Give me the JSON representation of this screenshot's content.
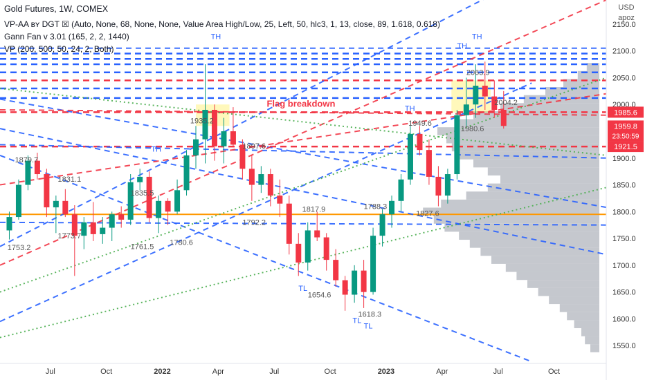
{
  "header": {
    "title": "Gold Futures, 1W, COMEX",
    "indicators": [
      "VP-AA ʙʏ DGT ☒ (Auto, None, 68, None, None, Value Area High/Low, 25, Left, 50, hlc3, 1, 13, close, 89, 1.618, 0.618)",
      "Gann Fan v 3.01 (165, 2, 2, 1440)",
      "VP (200, 500, 50, 24, 2, Both)"
    ]
  },
  "currency": {
    "code": "USD",
    "note": "apoz"
  },
  "colors": {
    "up": "#089981",
    "down": "#f23645",
    "blue": "#2962ff",
    "vp_green": "#4caf50",
    "orange": "#ff9800",
    "grey": "#b2b5be"
  },
  "chart_data": {
    "type": "candlestick",
    "timeframe": "1W",
    "x_ticks": [
      {
        "t": 0.2,
        "label": "Jul"
      },
      {
        "t": 3.2,
        "label": "Oct"
      },
      {
        "t": 6.2,
        "label": "2022"
      },
      {
        "t": 9.2,
        "label": "Apr"
      },
      {
        "t": 12.2,
        "label": "Jul"
      },
      {
        "t": 15.2,
        "label": "Oct"
      },
      {
        "t": 18.2,
        "label": "2023"
      },
      {
        "t": 21.2,
        "label": "Apr"
      },
      {
        "t": 24.2,
        "label": "Jul"
      },
      {
        "t": 27.2,
        "label": "Oct"
      }
    ],
    "y_ticks": [
      1550,
      1600,
      1650,
      1700,
      1750,
      1800,
      1850,
      1900,
      1950,
      2000,
      2050,
      2100,
      2150
    ],
    "ylim": [
      1518,
      2195
    ],
    "xlim": [
      -2.5,
      30.0
    ],
    "price_tags": [
      {
        "value": 1985.6,
        "label": "1985.6",
        "color": "#f23645"
      },
      {
        "value": 1959.8,
        "label": "1959.8",
        "sub": "23:50:59",
        "color": "#f23645"
      },
      {
        "value": 1921.5,
        "label": "1921.5",
        "color": "#f23645"
      }
    ],
    "annotations": [
      {
        "text": "TH",
        "t": 8.8,
        "p": 2122,
        "color": "#2962ff"
      },
      {
        "text": "TH",
        "t": 5.6,
        "p": 1912,
        "color": "#2962ff"
      },
      {
        "text": "TH",
        "t": 19.2,
        "p": 1988,
        "color": "#2962ff"
      },
      {
        "text": "TH",
        "t": 22.0,
        "p": 2105,
        "color": "#2962ff"
      },
      {
        "text": "TH",
        "t": 22.8,
        "p": 2122,
        "color": "#2962ff"
      },
      {
        "text": "TL",
        "t": 13.5,
        "p": 1652,
        "color": "#2962ff"
      },
      {
        "text": "TL",
        "t": 16.4,
        "p": 1592,
        "color": "#2962ff"
      },
      {
        "text": "TL",
        "t": 17.0,
        "p": 1582,
        "color": "#2962ff"
      },
      {
        "text": "Flag breakdown",
        "t": 11.8,
        "p": 1996,
        "color": "#f23645"
      }
    ],
    "level_labels": [
      {
        "t": -1.7,
        "p": 1892,
        "text": "1879.7"
      },
      {
        "t": 0.6,
        "p": 1856,
        "text": "1831.1"
      },
      {
        "t": 0.6,
        "p": 1750,
        "text": "1773.7"
      },
      {
        "t": -2.1,
        "p": 1728,
        "text": "1753.2"
      },
      {
        "t": 4.5,
        "p": 1830,
        "text": "1835.5"
      },
      {
        "t": 4.5,
        "p": 1730,
        "text": "1761.5"
      },
      {
        "t": 6.6,
        "p": 1738,
        "text": "1780.6"
      },
      {
        "t": 7.7,
        "p": 1965,
        "text": "1935.2"
      },
      {
        "t": 10.5,
        "p": 1918,
        "text": "1897.6"
      },
      {
        "t": 10.5,
        "p": 1775,
        "text": "1792.2"
      },
      {
        "t": 14.0,
        "p": 1640,
        "text": "1654.6"
      },
      {
        "t": 16.7,
        "p": 1604,
        "text": "1618.3"
      },
      {
        "t": 17.0,
        "p": 1805,
        "text": "1788.3"
      },
      {
        "t": 19.4,
        "p": 1960,
        "text": "1949.6"
      },
      {
        "t": 22.2,
        "p": 1950,
        "text": "1980.6"
      },
      {
        "t": 22.5,
        "p": 2055,
        "text": "2063.9"
      },
      {
        "t": 24.0,
        "p": 1999,
        "text": "2004.2"
      },
      {
        "t": 19.8,
        "p": 1792,
        "text": "1827.6"
      },
      {
        "t": 13.7,
        "p": 1800,
        "text": "1817.9"
      }
    ],
    "candles": [
      [
        -2.0,
        1765,
        1800,
        1748,
        1790
      ],
      [
        -1.5,
        1790,
        1860,
        1785,
        1850
      ],
      [
        -1.0,
        1850,
        1905,
        1840,
        1895
      ],
      [
        -0.5,
        1895,
        1910,
        1860,
        1870
      ],
      [
        0.0,
        1870,
        1880,
        1790,
        1808
      ],
      [
        0.5,
        1808,
        1830,
        1760,
        1820
      ],
      [
        1.0,
        1820,
        1842,
        1790,
        1795
      ],
      [
        1.5,
        1795,
        1812,
        1680,
        1755
      ],
      [
        2.0,
        1755,
        1790,
        1730,
        1780
      ],
      [
        2.5,
        1780,
        1818,
        1745,
        1758
      ],
      [
        3.0,
        1758,
        1790,
        1740,
        1770
      ],
      [
        3.5,
        1770,
        1800,
        1745,
        1795
      ],
      [
        4.0,
        1795,
        1810,
        1770,
        1785
      ],
      [
        4.5,
        1785,
        1870,
        1775,
        1855
      ],
      [
        5.0,
        1855,
        1880,
        1840,
        1865
      ],
      [
        5.5,
        1865,
        1875,
        1780,
        1788
      ],
      [
        6.0,
        1788,
        1830,
        1760,
        1820
      ],
      [
        6.5,
        1820,
        1825,
        1775,
        1800
      ],
      [
        7.0,
        1800,
        1860,
        1795,
        1840
      ],
      [
        7.5,
        1840,
        1915,
        1830,
        1905
      ],
      [
        8.0,
        1905,
        1960,
        1880,
        1935
      ],
      [
        8.5,
        1935,
        2075,
        1890,
        1990
      ],
      [
        9.0,
        1990,
        2000,
        1895,
        1922
      ],
      [
        9.5,
        1922,
        1975,
        1890,
        1950
      ],
      [
        10.0,
        1950,
        1995,
        1920,
        1925
      ],
      [
        10.5,
        1925,
        1935,
        1860,
        1880
      ],
      [
        11.0,
        1880,
        1905,
        1820,
        1850
      ],
      [
        11.5,
        1850,
        1885,
        1835,
        1870
      ],
      [
        12.0,
        1870,
        1880,
        1810,
        1830
      ],
      [
        12.5,
        1830,
        1860,
        1790,
        1815
      ],
      [
        13.0,
        1815,
        1830,
        1720,
        1740
      ],
      [
        13.5,
        1740,
        1760,
        1680,
        1705
      ],
      [
        14.0,
        1705,
        1780,
        1690,
        1765
      ],
      [
        14.5,
        1765,
        1800,
        1745,
        1752
      ],
      [
        15.0,
        1752,
        1760,
        1690,
        1710
      ],
      [
        15.5,
        1710,
        1730,
        1660,
        1672
      ],
      [
        16.0,
        1672,
        1680,
        1615,
        1645
      ],
      [
        16.5,
        1645,
        1700,
        1630,
        1690
      ],
      [
        17.0,
        1690,
        1710,
        1620,
        1650
      ],
      [
        17.5,
        1650,
        1770,
        1645,
        1755
      ],
      [
        18.0,
        1755,
        1805,
        1735,
        1795
      ],
      [
        18.5,
        1795,
        1830,
        1770,
        1820
      ],
      [
        19.0,
        1820,
        1870,
        1800,
        1860
      ],
      [
        19.5,
        1860,
        1960,
        1850,
        1945
      ],
      [
        20.0,
        1945,
        1960,
        1905,
        1915
      ],
      [
        20.5,
        1915,
        1935,
        1850,
        1865
      ],
      [
        21.0,
        1865,
        1885,
        1810,
        1830
      ],
      [
        21.5,
        1830,
        1880,
        1815,
        1870
      ],
      [
        22.0,
        1870,
        1990,
        1860,
        1980
      ],
      [
        22.5,
        1980,
        2050,
        1960,
        2000
      ],
      [
        23.0,
        2000,
        2075,
        1975,
        2035
      ],
      [
        23.5,
        2035,
        2080,
        1990,
        2015
      ],
      [
        24.0,
        2015,
        2045,
        1975,
        1990
      ],
      [
        24.5,
        1990,
        2025,
        1955,
        1960
      ]
    ],
    "blue_lines": [
      [
        [
          -2.5,
          1735
        ],
        [
          27,
          2260
        ]
      ],
      [
        [
          -2.5,
          1955
        ],
        [
          30,
          1720
        ]
      ],
      [
        [
          -2.5,
          2010
        ],
        [
          30,
          1808
        ]
      ],
      [
        [
          -2.5,
          1905
        ],
        [
          26,
          1520
        ]
      ],
      [
        [
          -2.5,
          1595
        ],
        [
          26,
          2040
        ]
      ],
      [
        [
          -2.5,
          1925
        ],
        [
          30,
          1900
        ]
      ],
      [
        [
          -2.5,
          1780
        ],
        [
          30,
          1775
        ]
      ],
      [
        [
          -2.5,
          2105
        ],
        [
          30,
          2105
        ]
      ]
    ],
    "red_lines": [
      [
        [
          -2.5,
          1700
        ],
        [
          30,
          2195
        ]
      ],
      [
        [
          -2.5,
          1850
        ],
        [
          30,
          2020
        ]
      ],
      [
        [
          -2.5,
          1990
        ],
        [
          30,
          1980
        ]
      ]
    ],
    "green_lines": [
      [
        [
          -2.5,
          1565
        ],
        [
          30,
          1845
        ]
      ],
      [
        [
          -2.5,
          1650
        ],
        [
          30,
          2050
        ]
      ],
      [
        [
          -2.5,
          2030
        ],
        [
          30,
          1905
        ]
      ]
    ],
    "horizontal_levels": [
      {
        "p": 1985.6,
        "color": "#f23645",
        "dash": true,
        "from": -2.5
      },
      {
        "p": 1921.5,
        "color": "#f23645",
        "dash": true,
        "from": -2.5
      },
      {
        "p": 2095,
        "color": "#2962ff",
        "dash": true,
        "from": -2.5
      },
      {
        "p": 2085,
        "color": "#2962ff",
        "dash": true,
        "from": -2.5
      },
      {
        "p": 2075,
        "color": "#2962ff",
        "dash": true,
        "from": -2.5
      },
      {
        "p": 2060,
        "color": "#2962ff",
        "dash": true,
        "from": -2.5
      },
      {
        "p": 2045,
        "color": "#f23645",
        "dash": true,
        "from": -2.5
      },
      {
        "p": 2030,
        "color": "#2962ff",
        "dash": true,
        "from": -2.5
      },
      {
        "p": 2012,
        "color": "#2962ff",
        "dash": true,
        "from": -2.5
      },
      {
        "p": 1795,
        "color": "#ff9800",
        "dash": false,
        "from": -2.5
      }
    ],
    "volume_profile": [
      [
        1545,
        0.05
      ],
      [
        1560,
        0.08
      ],
      [
        1575,
        0.1
      ],
      [
        1590,
        0.14
      ],
      [
        1605,
        0.18
      ],
      [
        1620,
        0.22
      ],
      [
        1635,
        0.28
      ],
      [
        1650,
        0.34
      ],
      [
        1665,
        0.4
      ],
      [
        1680,
        0.46
      ],
      [
        1695,
        0.52
      ],
      [
        1710,
        0.6
      ],
      [
        1725,
        0.66
      ],
      [
        1740,
        0.72
      ],
      [
        1755,
        0.78
      ],
      [
        1770,
        0.86
      ],
      [
        1785,
        0.92
      ],
      [
        1800,
        0.98
      ],
      [
        1815,
        0.88
      ],
      [
        1830,
        0.74
      ],
      [
        1845,
        0.62
      ],
      [
        1860,
        0.55
      ],
      [
        1875,
        0.62
      ],
      [
        1890,
        0.7
      ],
      [
        1905,
        0.78
      ],
      [
        1920,
        0.82
      ],
      [
        1935,
        0.85
      ],
      [
        1950,
        0.9
      ],
      [
        1965,
        0.8
      ],
      [
        1980,
        0.7
      ],
      [
        1995,
        0.55
      ],
      [
        2010,
        0.42
      ],
      [
        2025,
        0.3
      ],
      [
        2040,
        0.2
      ],
      [
        2055,
        0.12
      ],
      [
        2070,
        0.07
      ]
    ],
    "highlight_zones": [
      {
        "t0": 8.0,
        "t1": 9.8,
        "p0": 1960,
        "p1": 2000
      },
      {
        "t0": 21.7,
        "t1": 23.8,
        "p0": 1985,
        "p1": 2045
      }
    ]
  }
}
